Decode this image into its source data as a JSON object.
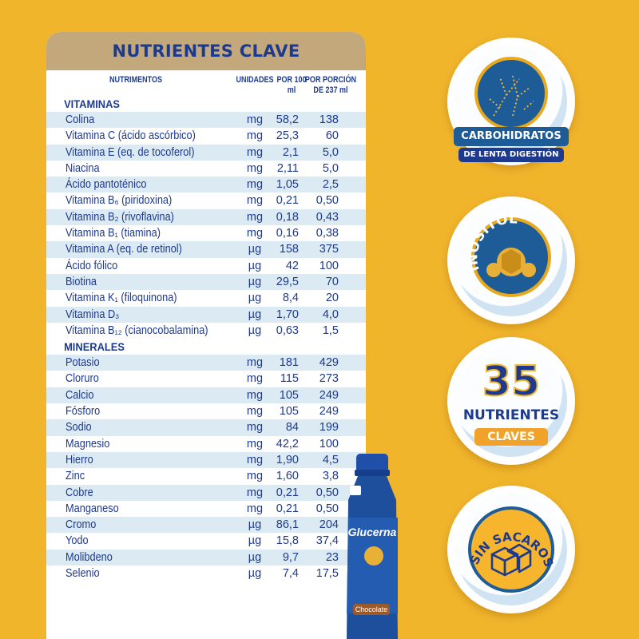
{
  "table": {
    "title": "NUTRIENTES CLAVE",
    "headers": {
      "nutrimentos": "NUTRIMENTOS",
      "unidades": "UNIDADES",
      "por100": "POR 100 ml",
      "porcion": "POR PORCIÓN DE 237 ml"
    },
    "vitaminas_label": "VITAMINAS",
    "minerales_label": "MINERALES",
    "vitaminas": [
      {
        "name": "Colina",
        "unit": "mg",
        "v100": "58,2",
        "vportion": "138"
      },
      {
        "name": "Vitamina C (ácido ascórbico)",
        "unit": "mg",
        "v100": "25,3",
        "vportion": "60"
      },
      {
        "name": "Vitamina E (eq. de tocoferol)",
        "unit": "mg",
        "v100": "2,1",
        "vportion": "5,0"
      },
      {
        "name": "Niacina",
        "unit": "mg",
        "v100": "2,11",
        "vportion": "5,0"
      },
      {
        "name": "Ácido pantoténico",
        "unit": "mg",
        "v100": "1,05",
        "vportion": "2,5"
      },
      {
        "name": "Vitamina B₆ (piridoxina)",
        "unit": "mg",
        "v100": "0,21",
        "vportion": "0,50"
      },
      {
        "name": "Vitamina B₂ (rivoflavina)",
        "unit": "mg",
        "v100": "0,18",
        "vportion": "0,43"
      },
      {
        "name": "Vitamina B₁ (tiamina)",
        "unit": "mg",
        "v100": "0,16",
        "vportion": "0,38"
      },
      {
        "name": "Vitamina A (eq. de retinol)",
        "unit": "µg",
        "v100": "158",
        "vportion": "375"
      },
      {
        "name": "Ácido fólico",
        "unit": "µg",
        "v100": "42",
        "vportion": "100"
      },
      {
        "name": "Biotina",
        "unit": "µg",
        "v100": "29,5",
        "vportion": "70"
      },
      {
        "name": "Vitamina K₁ (filoquinona)",
        "unit": "µg",
        "v100": "8,4",
        "vportion": "20"
      },
      {
        "name": "Vitamina D₃",
        "unit": "µg",
        "v100": "1,70",
        "vportion": "4,0"
      },
      {
        "name": "Vitamina B₁₂ (cianocobalamina)",
        "unit": "µg",
        "v100": "0,63",
        "vportion": "1,5"
      }
    ],
    "minerales": [
      {
        "name": "Potasio",
        "unit": "mg",
        "v100": "181",
        "vportion": "429"
      },
      {
        "name": "Cloruro",
        "unit": "mg",
        "v100": "115",
        "vportion": "273"
      },
      {
        "name": "Calcio",
        "unit": "mg",
        "v100": "105",
        "vportion": "249"
      },
      {
        "name": "Fósforo",
        "unit": "mg",
        "v100": "105",
        "vportion": "249"
      },
      {
        "name": "Sodio",
        "unit": "mg",
        "v100": "84",
        "vportion": "199"
      },
      {
        "name": "Magnesio",
        "unit": "mg",
        "v100": "42,2",
        "vportion": "100"
      },
      {
        "name": "Hierro",
        "unit": "mg",
        "v100": "1,90",
        "vportion": "4,5"
      },
      {
        "name": "Zinc",
        "unit": "mg",
        "v100": "1,60",
        "vportion": "3,8"
      },
      {
        "name": "Cobre",
        "unit": "mg",
        "v100": "0,21",
        "vportion": "0,50"
      },
      {
        "name": "Manganeso",
        "unit": "mg",
        "v100": "0,21",
        "vportion": "0,50"
      },
      {
        "name": "Cromo",
        "unit": "µg",
        "v100": "86,1",
        "vportion": "204"
      },
      {
        "name": "Yodo",
        "unit": "µg",
        "v100": "15,8",
        "vportion": "37,4"
      },
      {
        "name": "Molibdeno",
        "unit": "µg",
        "v100": "9,7",
        "vportion": "23"
      },
      {
        "name": "Selenio",
        "unit": "µg",
        "v100": "7,4",
        "vportion": "17,5"
      }
    ]
  },
  "product": {
    "brand": "Glucerna",
    "flavor": "Chocolate"
  },
  "badges": {
    "carbs": {
      "line1": "CARBOHIDRATOS",
      "line2": "DE LENTA DIGESTIÓN"
    },
    "inositol": {
      "label": "INOSITOL"
    },
    "nutrients": {
      "number": "35",
      "line1": "NUTRIENTES",
      "line2": "CLAVES"
    },
    "sugar": {
      "label": "SIN SACAROSA"
    }
  },
  "colors": {
    "background": "#f1b52c",
    "navy": "#1d3a8f",
    "title_bar": "#c2a87a",
    "stripe": "#dceaf3",
    "badge_blue": "#1d5c97",
    "orange": "#f1a22a"
  }
}
